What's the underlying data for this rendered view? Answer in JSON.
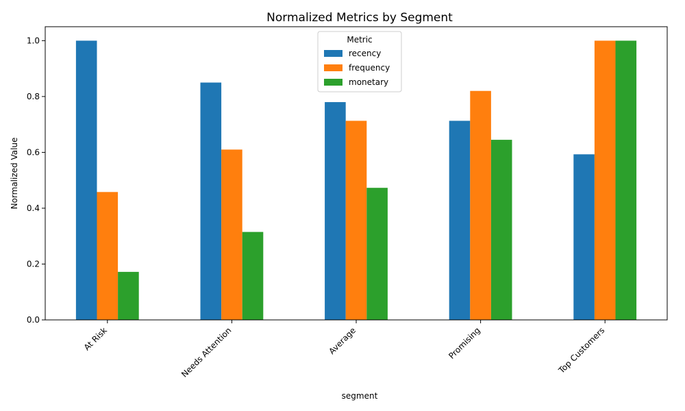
{
  "chart_data": {
    "type": "bar",
    "title": "Normalized Metrics by Segment",
    "xlabel": "segment",
    "ylabel": "Normalized Value",
    "ylim": [
      0,
      1.05
    ],
    "yticks": [
      0.0,
      0.2,
      0.4,
      0.6,
      0.8,
      1.0
    ],
    "ytick_labels": [
      "0.0",
      "0.2",
      "0.4",
      "0.6",
      "0.8",
      "1.0"
    ],
    "categories": [
      "At Risk",
      "Needs Attention",
      "Average",
      "Promising",
      "Top Customers"
    ],
    "legend": {
      "title": "Metric",
      "placement": "top-center"
    },
    "grid": false,
    "series": [
      {
        "name": "recency",
        "color": "#1f77b4",
        "values": [
          1.0,
          0.85,
          0.78,
          0.713,
          0.593
        ]
      },
      {
        "name": "frequency",
        "color": "#ff7f0e",
        "values": [
          0.458,
          0.61,
          0.713,
          0.82,
          1.0
        ]
      },
      {
        "name": "monetary",
        "color": "#2ca02c",
        "values": [
          0.172,
          0.315,
          0.473,
          0.645,
          1.0
        ]
      }
    ]
  }
}
